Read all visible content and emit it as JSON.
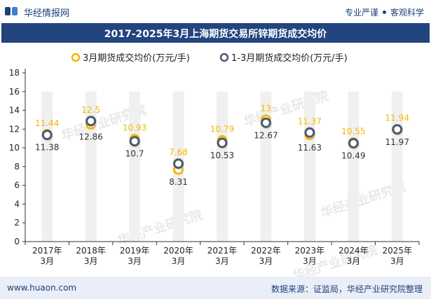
{
  "header": {
    "brand": "华经情报网",
    "tag1": "专业严谨",
    "tag2": "客观科学"
  },
  "title": "2017-2025年3月上海期货交易所锌期货成交均价",
  "footer": {
    "site": "www.huaon.com",
    "source": "数据来源：证监局，华经产业研究院整理"
  },
  "watermark": "华经产业研究院",
  "colors": {
    "series1": "#f5b800",
    "series2": "#4a5a70",
    "bar": "#f0f0f0",
    "titlebar": "#22447f"
  },
  "chart_data": {
    "type": "line",
    "title": "2017-2025年3月上海期货交易所锌期货成交均价",
    "categories": [
      "2017年3月",
      "2018年3月",
      "2019年3月",
      "2020年3月",
      "2021年3月",
      "2022年3月",
      "2023年3月",
      "2024年3月",
      "2025年3月"
    ],
    "x_lines": [
      [
        "2017年",
        "3月"
      ],
      [
        "2018年",
        "3月"
      ],
      [
        "2019年",
        "3月"
      ],
      [
        "2020年",
        "3月"
      ],
      [
        "2021年",
        "3月"
      ],
      [
        "2022年",
        "3月"
      ],
      [
        "2023年",
        "3月"
      ],
      [
        "2024年",
        "3月"
      ],
      [
        "2025年",
        "3月"
      ]
    ],
    "series": [
      {
        "name": "3月期货成交均价(万元/手)",
        "values": [
          11.44,
          12.5,
          10.93,
          7.68,
          10.79,
          13,
          11.37,
          10.55,
          11.94
        ],
        "labels": [
          "11.44",
          "12.5",
          "10.93",
          "7.68",
          "10.79",
          "13",
          "11.37",
          "10.55",
          "11.94"
        ]
      },
      {
        "name": "1-3月期货成交均价(万元/手)",
        "values": [
          11.38,
          12.86,
          10.7,
          8.31,
          10.53,
          12.67,
          11.63,
          10.49,
          11.97
        ],
        "labels": [
          "11.38",
          "12.86",
          "10.7",
          "8.31",
          "10.53",
          "12.67",
          "11.63",
          "10.49",
          "11.97"
        ]
      }
    ],
    "ylim": [
      0,
      18
    ],
    "yticks": [
      0,
      2,
      4,
      6,
      8,
      10,
      12,
      14,
      16,
      18
    ],
    "legend": "top-center",
    "grid": false
  }
}
